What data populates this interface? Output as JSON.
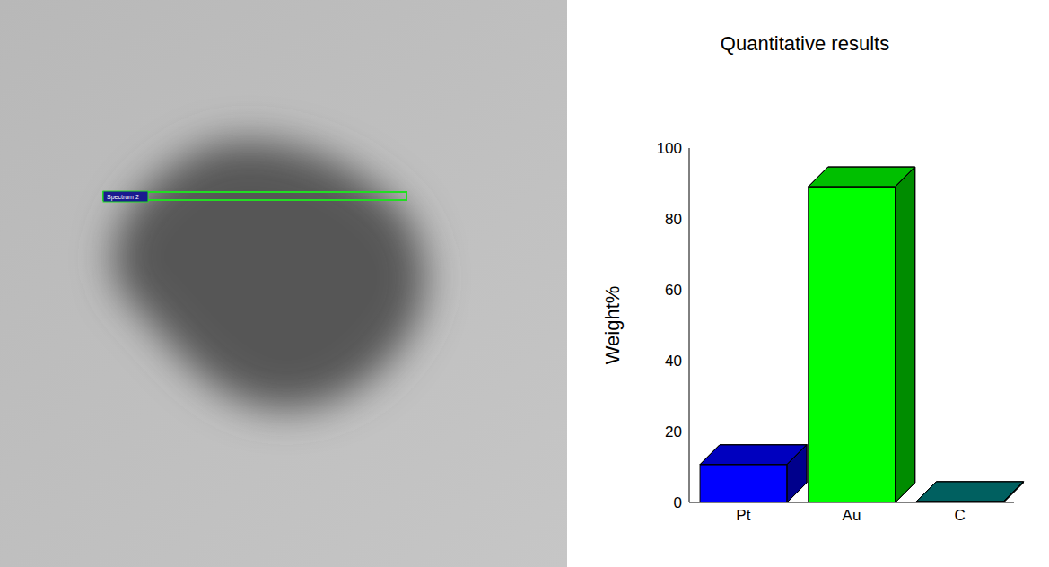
{
  "image": {
    "label": "Spectrum 2"
  },
  "chart_data": {
    "type": "bar",
    "title": "Quantitative results",
    "ylabel": "Weight%",
    "categories": [
      "Pt",
      "Au",
      "C"
    ],
    "values": [
      10.7,
      89.1,
      0.3
    ],
    "colors": [
      "#0000ff",
      "#00ff00",
      "#008080"
    ],
    "ylim": [
      0,
      100
    ],
    "yticks": [
      0,
      20,
      40,
      60,
      80,
      100
    ],
    "grid": false
  }
}
